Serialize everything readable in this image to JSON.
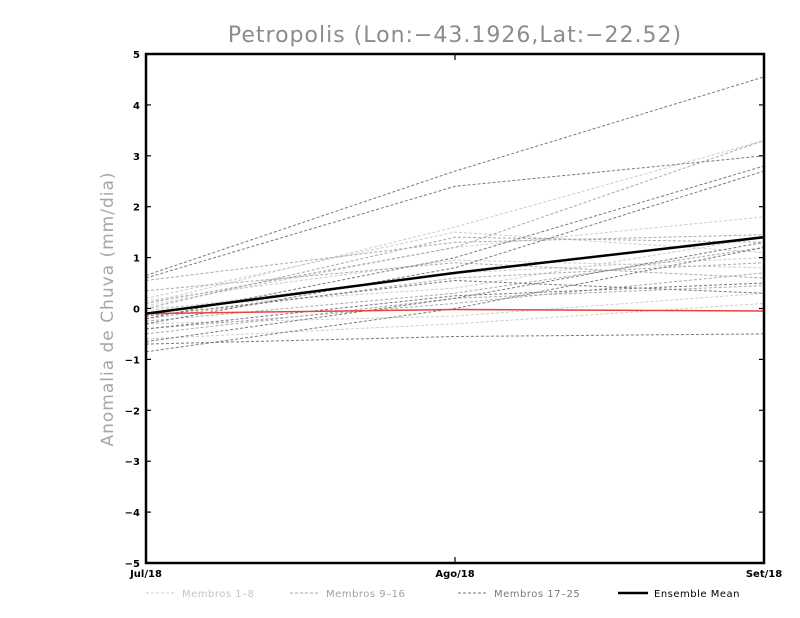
{
  "chart_data": {
    "type": "line",
    "title": "Petropolis (Lon:−43.1926,Lat:−22.52)",
    "ylabel": "Anomalia de Chuva (mm/dia)",
    "xlabel": "",
    "categories": [
      "Jul/18",
      "Ago/18",
      "Set/18"
    ],
    "ylim": [
      -5,
      5
    ],
    "yticks": [
      "5",
      "4",
      "3",
      "2",
      "1",
      "0",
      "−1",
      "−2",
      "−3",
      "−4",
      "−5"
    ],
    "grid": false,
    "legend_position": "bottom",
    "legend": [
      "Membros 1–8",
      "Membros 9–16",
      "Membros 17–25",
      "Ensemble Mean"
    ],
    "colors": {
      "group1": "#cccccc",
      "group2": "#aaaaaa",
      "group3": "#7a7a7a",
      "mean": "#000000",
      "zero": "#e8423a"
    },
    "members": [
      {
        "group": 1,
        "values": [
          0.1,
          1.6,
          3.3
        ]
      },
      {
        "group": 1,
        "values": [
          0.05,
          1.2,
          1.8
        ]
      },
      {
        "group": 1,
        "values": [
          0.2,
          1.5,
          1.1
        ]
      },
      {
        "group": 1,
        "values": [
          -0.05,
          0.7,
          1.0
        ]
      },
      {
        "group": 1,
        "values": [
          0.15,
          0.95,
          0.8
        ]
      },
      {
        "group": 1,
        "values": [
          -0.3,
          -0.15,
          0.3
        ]
      },
      {
        "group": 1,
        "values": [
          0.0,
          0.4,
          1.4
        ]
      },
      {
        "group": 1,
        "values": [
          -0.6,
          -0.3,
          0.1
        ]
      },
      {
        "group": 2,
        "values": [
          0.55,
          1.3,
          1.45
        ]
      },
      {
        "group": 2,
        "values": [
          0.1,
          1.2,
          3.3
        ]
      },
      {
        "group": 2,
        "values": [
          -0.25,
          0.3,
          1.2
        ]
      },
      {
        "group": 2,
        "values": [
          -0.2,
          0.6,
          0.9
        ]
      },
      {
        "group": 2,
        "values": [
          0.35,
          0.9,
          0.6
        ]
      },
      {
        "group": 2,
        "values": [
          -0.4,
          0.1,
          0.7
        ]
      },
      {
        "group": 2,
        "values": [
          0.0,
          1.4,
          1.3
        ]
      },
      {
        "group": 2,
        "values": [
          -0.5,
          0.2,
          0.45
        ]
      },
      {
        "group": 3,
        "values": [
          0.65,
          2.7,
          4.55
        ]
      },
      {
        "group": 3,
        "values": [
          0.6,
          2.4,
          3.0
        ]
      },
      {
        "group": 3,
        "values": [
          -0.2,
          1.0,
          2.8
        ]
      },
      {
        "group": 3,
        "values": [
          -0.3,
          0.8,
          2.7
        ]
      },
      {
        "group": 3,
        "values": [
          -0.65,
          0.2,
          1.3
        ]
      },
      {
        "group": 3,
        "values": [
          -0.7,
          -0.55,
          -0.5
        ]
      },
      {
        "group": 3,
        "values": [
          -0.85,
          0.0,
          1.2
        ]
      },
      {
        "group": 3,
        "values": [
          -0.15,
          0.55,
          0.3
        ]
      },
      {
        "group": 3,
        "values": [
          -0.4,
          0.25,
          0.5
        ]
      }
    ],
    "mean": [
      -0.1,
      0.7,
      1.4
    ],
    "zero_line": [
      -0.1,
      -0.02,
      -0.05
    ]
  }
}
